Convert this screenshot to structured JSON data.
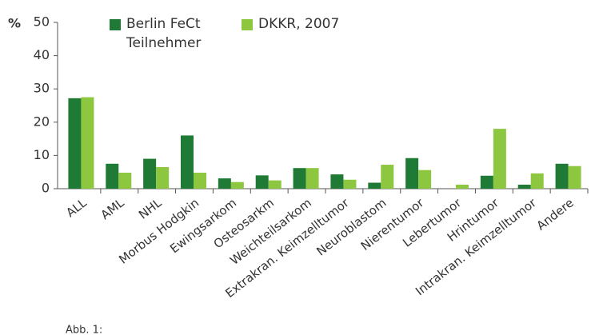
{
  "chart_data": {
    "type": "bar",
    "ylabel": "%",
    "categories": [
      "ALL",
      "AML",
      "NHL",
      "Morbus Hodgkin",
      "Ewingsarkom",
      "Osteosarkm",
      "Weichteilsarkom",
      "Extrakran. Keimzelltumor",
      "Neuroblastom",
      "Nierentumor",
      "Lebertumor",
      "Hrintumor",
      "Intrakran. Keimzelltumor",
      "Andere"
    ],
    "series": [
      {
        "name": "Berlin FeCt Teilnehmer",
        "color": "#1e7a34",
        "values": [
          27.2,
          7.5,
          9,
          16,
          3.1,
          4,
          6.2,
          4.3,
          1.8,
          9.2,
          0,
          3.9,
          1.2,
          7.5
        ]
      },
      {
        "name": "DKKR, 2007",
        "color": "#8dc63f",
        "values": [
          27.5,
          4.8,
          6.5,
          4.8,
          2,
          2.5,
          6.2,
          2.7,
          7.2,
          5.6,
          1.2,
          18,
          4.6,
          6.8
        ]
      }
    ],
    "ylim": [
      0,
      50
    ],
    "yticks": [
      0,
      10,
      20,
      30,
      40,
      50
    ],
    "caption": "Abb. 1:"
  }
}
